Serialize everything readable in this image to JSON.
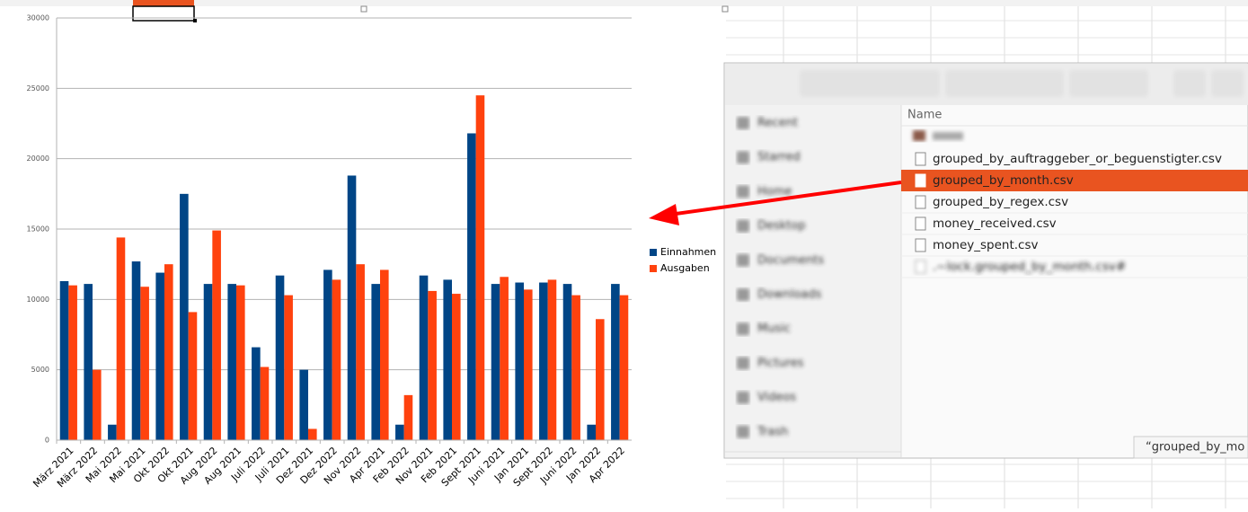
{
  "chart_data": {
    "type": "bar",
    "categories": [
      "März 2021",
      "März 2022",
      "Mai 2022",
      "Mai 2021",
      "Okt 2022",
      "Okt 2021",
      "Aug 2022",
      "Aug 2021",
      "Juli 2022",
      "Juli 2021",
      "Dez 2021",
      "Dez 2022",
      "Nov 2022",
      "Apr 2021",
      "Feb 2022",
      "Nov 2021",
      "Feb 2021",
      "Sept 2021",
      "Juni 2021",
      "Jan 2021",
      "Sept 2022",
      "Juni 2022",
      "Jan 2022",
      "Apr 2022"
    ],
    "series": [
      {
        "name": "Einnahmen",
        "color": "#004586",
        "values": [
          11300,
          11100,
          1100,
          12700,
          11900,
          17500,
          11100,
          11100,
          6600,
          11700,
          5000,
          12100,
          18800,
          11100,
          1100,
          11700,
          11400,
          21800,
          11100,
          11200,
          11200,
          11100,
          1100,
          11100
        ]
      },
      {
        "name": "Ausgaben",
        "color": "#ff420e",
        "values": [
          11000,
          5000,
          14400,
          10900,
          12500,
          9100,
          14900,
          11000,
          5200,
          10300,
          800,
          11400,
          12500,
          12100,
          3200,
          10600,
          10400,
          24500,
          11600,
          10700,
          11400,
          10300,
          8600,
          10300
        ]
      }
    ],
    "ylim": [
      0,
      30000
    ],
    "yticks": [
      0,
      5000,
      10000,
      15000,
      20000,
      25000,
      30000
    ],
    "grid": true,
    "legend": "right"
  },
  "file_manager": {
    "sidebar": [
      "Recent",
      "Starred",
      "Home",
      "Desktop",
      "Documents",
      "Downloads",
      "Music",
      "Pictures",
      "Videos",
      "Trash"
    ],
    "column_header": "Name",
    "files": [
      "grouped_by_auftraggeber_or_beguenstigter.csv",
      "grouped_by_month.csv",
      "grouped_by_regex.csv",
      "money_received.csv",
      "money_spent.csv",
      ".~lock.grouped_by_month.csv#"
    ],
    "selected": 1,
    "tooltip": "“grouped_by_mo"
  }
}
